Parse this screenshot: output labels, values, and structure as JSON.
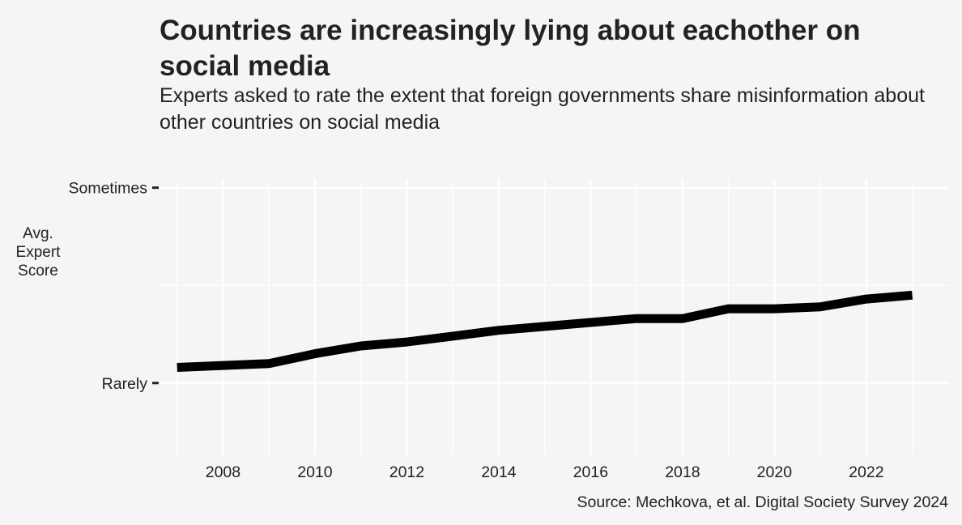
{
  "title": "Countries are increasingly lying about eachother on social media",
  "subtitle": "Experts asked to rate the extent that foreign governments share misinformation about other countries on social media",
  "caption": "Source: Mechkova, et al. Digital Society Survey 2024",
  "chart_data": {
    "type": "line",
    "title": "Countries are increasingly lying about eachother on social media",
    "subtitle": "Experts asked to rate the extent that foreign governments share misinformation about other countries on social media",
    "xlabel": "",
    "ylabel_lines": [
      "Avg.",
      "Expert",
      "Score"
    ],
    "x": [
      2007,
      2008,
      2009,
      2010,
      2011,
      2012,
      2013,
      2014,
      2015,
      2016,
      2017,
      2018,
      2019,
      2020,
      2021,
      2022,
      2023
    ],
    "series": [
      {
        "values": [
          1.08,
          1.09,
          1.1,
          1.15,
          1.19,
          1.21,
          1.24,
          1.27,
          1.29,
          1.31,
          1.33,
          1.33,
          1.38,
          1.38,
          1.39,
          1.43,
          1.45
        ]
      }
    ],
    "xlim": [
      2006.6,
      2023.8
    ],
    "ylim": [
      0.63,
      2.04
    ],
    "x_ticks": [
      2008,
      2010,
      2012,
      2014,
      2016,
      2018,
      2020,
      2022
    ],
    "y_ticks": [
      {
        "value": 1,
        "label": "Rarely"
      },
      {
        "value": 2,
        "label": "Sometimes"
      }
    ],
    "grid": true,
    "line_color": "#000000",
    "grid_color": "#ffffff",
    "background": "#f5f5f5"
  }
}
